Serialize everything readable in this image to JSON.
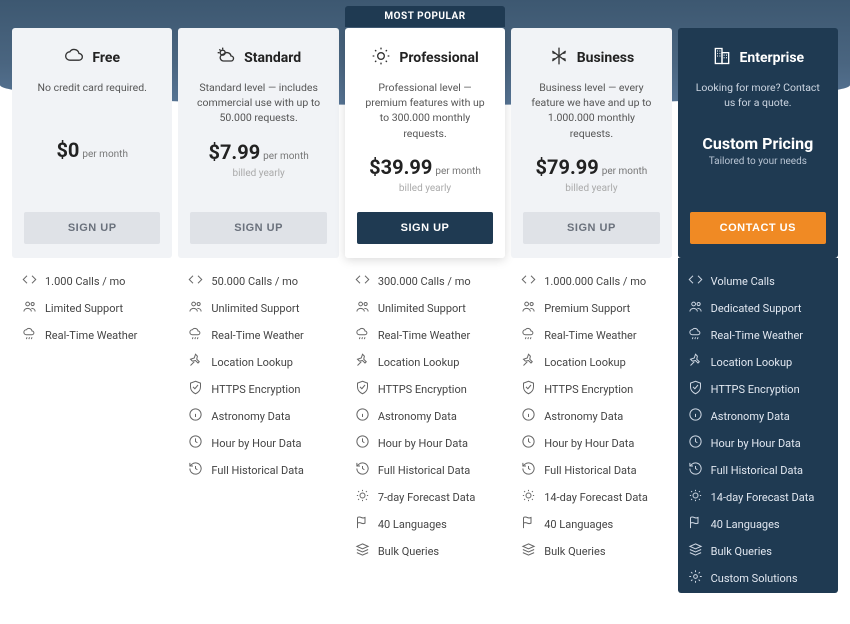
{
  "popular_tag": "MOST POPULAR",
  "colors": {
    "band_top": "#3d5871",
    "band_bot": "#567494",
    "card_bg": "#f1f3f6",
    "popular_card_bg": "#ffffff",
    "dark_bg": "#1f3a52",
    "accent": "#f08a24",
    "grey_btn": "#dfe2e7"
  },
  "plans": [
    {
      "icon": "cloud",
      "name": "Free",
      "desc": "No credit card required.",
      "price": "$0",
      "unit": "per month",
      "sub": "",
      "btn": "SIGN UP",
      "dark": false,
      "features": [
        {
          "icon": "code",
          "text": "1.000 Calls / mo"
        },
        {
          "icon": "users",
          "text": "Limited Support"
        },
        {
          "icon": "weather",
          "text": "Real-Time Weather"
        }
      ]
    },
    {
      "icon": "sun-cloud",
      "name": "Standard",
      "desc": "Standard level — includes commercial use with up to 50.000 requests.",
      "price": "$7.99",
      "unit": "per month",
      "sub": "billed yearly",
      "btn": "SIGN UP",
      "dark": false,
      "features": [
        {
          "icon": "code",
          "text": "50.000 Calls / mo"
        },
        {
          "icon": "users",
          "text": "Unlimited Support"
        },
        {
          "icon": "weather",
          "text": "Real-Time Weather"
        },
        {
          "icon": "pin",
          "text": "Location Lookup"
        },
        {
          "icon": "shield",
          "text": "HTTPS Encryption"
        },
        {
          "icon": "info",
          "text": "Astronomy Data"
        },
        {
          "icon": "clock",
          "text": "Hour by Hour Data"
        },
        {
          "icon": "history",
          "text": "Full Historical Data"
        }
      ]
    },
    {
      "icon": "sun",
      "name": "Professional",
      "desc": "Professional level — premium features with up to 300.000 monthly requests.",
      "price": "$39.99",
      "unit": "per month",
      "sub": "billed yearly",
      "btn": "SIGN UP",
      "dark": false,
      "popular": true,
      "features": [
        {
          "icon": "code",
          "text": "300.000 Calls / mo"
        },
        {
          "icon": "users",
          "text": "Unlimited Support"
        },
        {
          "icon": "weather",
          "text": "Real-Time Weather"
        },
        {
          "icon": "pin",
          "text": "Location Lookup"
        },
        {
          "icon": "shield",
          "text": "HTTPS Encryption"
        },
        {
          "icon": "info",
          "text": "Astronomy Data"
        },
        {
          "icon": "clock",
          "text": "Hour by Hour Data"
        },
        {
          "icon": "history",
          "text": "Full Historical Data"
        },
        {
          "icon": "forecast",
          "text": "7-day Forecast Data"
        },
        {
          "icon": "flag",
          "text": "40 Languages"
        },
        {
          "icon": "bulk",
          "text": "Bulk Queries"
        }
      ]
    },
    {
      "icon": "snow",
      "name": "Business",
      "desc": "Business level — every feature we have and up to 1.000.000 monthly requests.",
      "price": "$79.99",
      "unit": "per month",
      "sub": "billed yearly",
      "btn": "SIGN UP",
      "dark": false,
      "features": [
        {
          "icon": "code",
          "text": "1.000.000 Calls / mo"
        },
        {
          "icon": "users",
          "text": "Premium Support"
        },
        {
          "icon": "weather",
          "text": "Real-Time Weather"
        },
        {
          "icon": "pin",
          "text": "Location Lookup"
        },
        {
          "icon": "shield",
          "text": "HTTPS Encryption"
        },
        {
          "icon": "info",
          "text": "Astronomy Data"
        },
        {
          "icon": "clock",
          "text": "Hour by Hour Data"
        },
        {
          "icon": "history",
          "text": "Full Historical Data"
        },
        {
          "icon": "forecast",
          "text": "14-day Forecast Data"
        },
        {
          "icon": "flag",
          "text": "40 Languages"
        },
        {
          "icon": "bulk",
          "text": "Bulk Queries"
        }
      ]
    },
    {
      "icon": "building",
      "name": "Enterprise",
      "desc": "Looking for more?\nContact us for a quote.",
      "custom_title": "Custom Pricing",
      "custom_sub": "Tailored to your needs",
      "btn": "CONTACT US",
      "dark": true,
      "features": [
        {
          "icon": "code",
          "text": "Volume Calls"
        },
        {
          "icon": "users",
          "text": "Dedicated Support"
        },
        {
          "icon": "weather",
          "text": "Real-Time Weather"
        },
        {
          "icon": "pin",
          "text": "Location Lookup"
        },
        {
          "icon": "shield",
          "text": "HTTPS Encryption"
        },
        {
          "icon": "info",
          "text": "Astronomy Data"
        },
        {
          "icon": "clock",
          "text": "Hour by Hour Data"
        },
        {
          "icon": "history",
          "text": "Full Historical Data"
        },
        {
          "icon": "forecast",
          "text": "14-day Forecast Data"
        },
        {
          "icon": "flag",
          "text": "40 Languages"
        },
        {
          "icon": "bulk",
          "text": "Bulk Queries"
        },
        {
          "icon": "gear",
          "text": "Custom Solutions"
        }
      ]
    }
  ]
}
